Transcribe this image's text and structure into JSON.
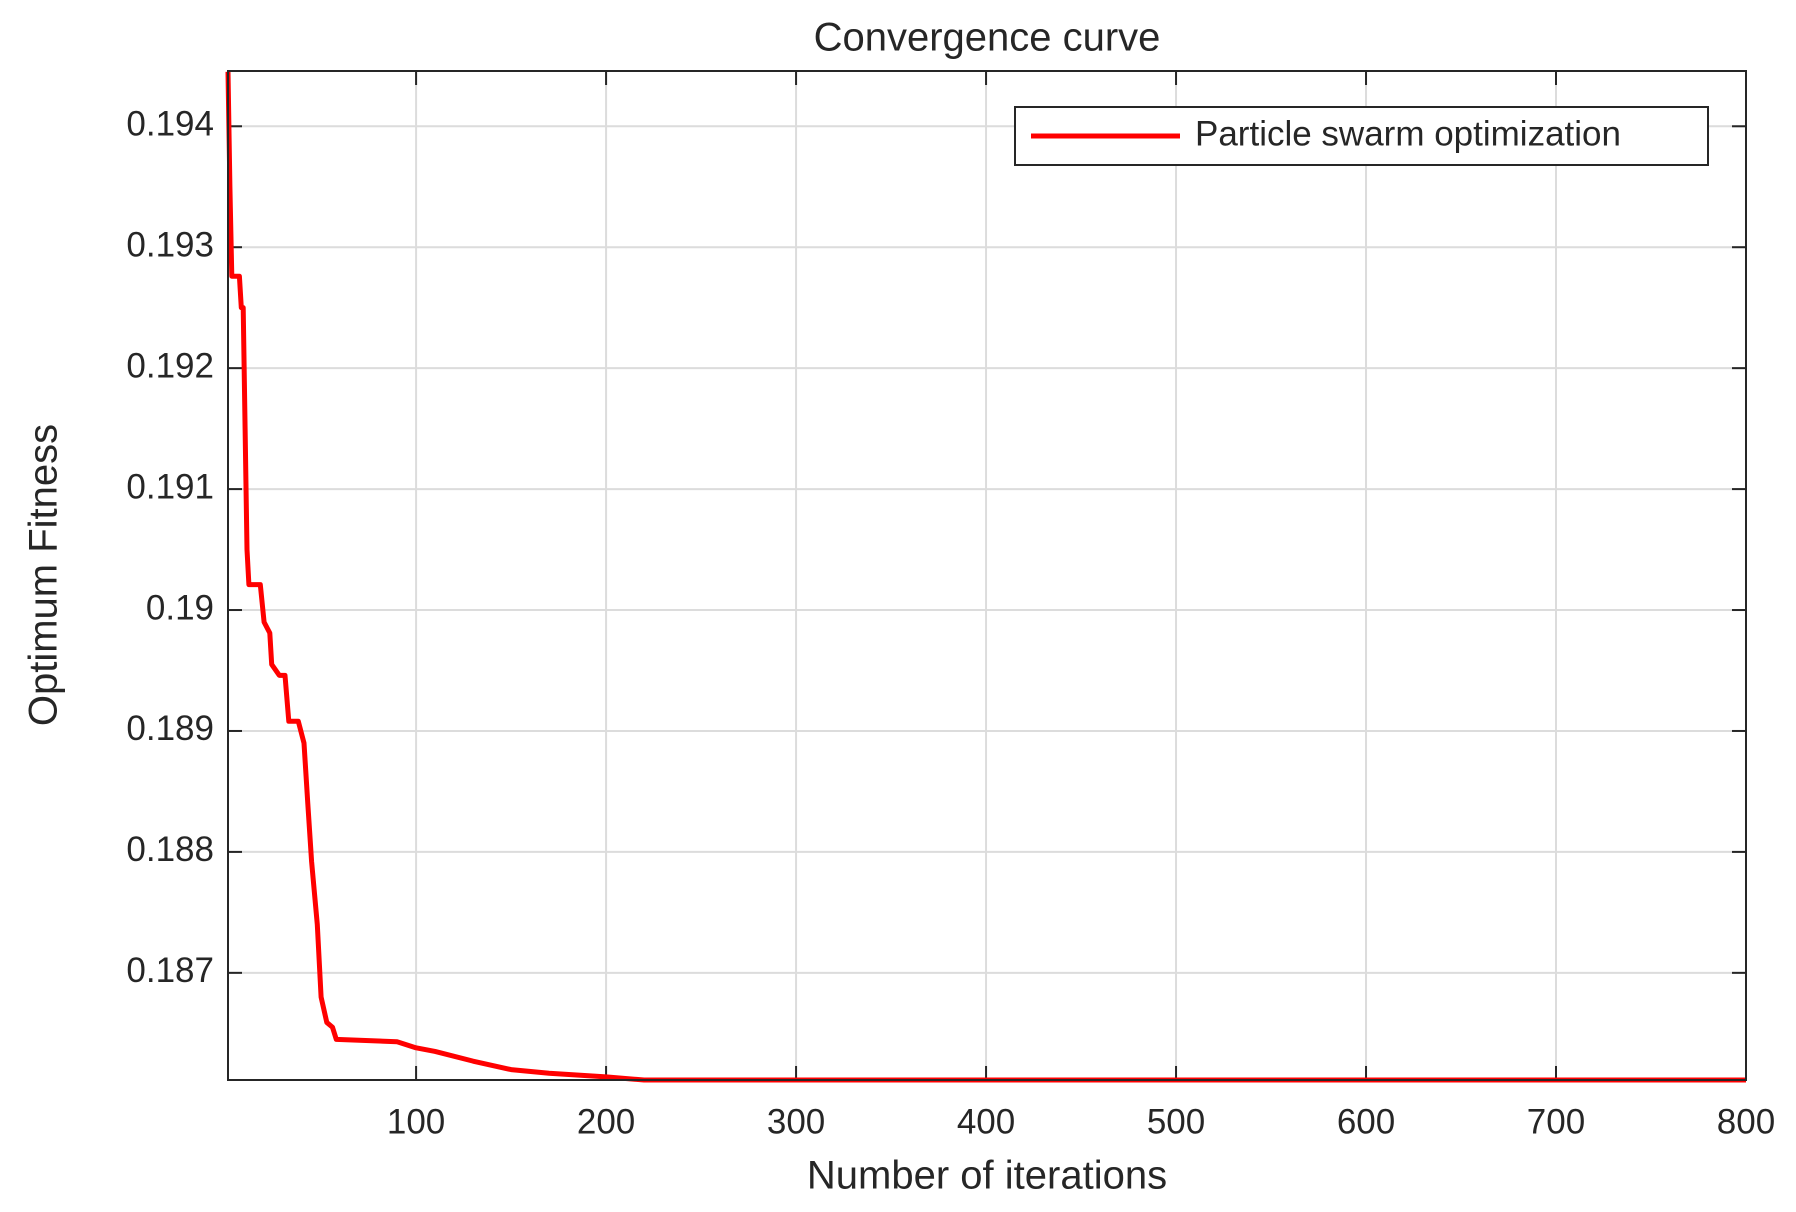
{
  "chart_data": {
    "type": "line",
    "title": "Convergence curve",
    "x_label": "Number of iterations",
    "y_label": "Optimum Fitness",
    "x": [
      1,
      2,
      3,
      7,
      8,
      9,
      10,
      11,
      12,
      18,
      20,
      23,
      24,
      28,
      31,
      33,
      38,
      41,
      43,
      45,
      48,
      50,
      53,
      56,
      58,
      90,
      100,
      110,
      130,
      150,
      170,
      200,
      220,
      800
    ],
    "series": [
      {
        "name": "Particle swarm optimization",
        "color": "#ff0000",
        "values": [
          0.19445,
          0.1935,
          0.19276,
          0.19276,
          0.1925,
          0.1925,
          0.1915,
          0.1905,
          0.19021,
          0.19021,
          0.1899,
          0.18981,
          0.18955,
          0.18946,
          0.18946,
          0.18908,
          0.18908,
          0.1889,
          0.1884,
          0.18792,
          0.1874,
          0.1868,
          0.18659,
          0.18655,
          0.18645,
          0.18643,
          0.18638,
          0.18635,
          0.18627,
          0.1862,
          0.18617,
          0.18614,
          0.186114,
          0.186114
        ]
      }
    ],
    "xlim": [
      1,
      800
    ],
    "ylim": [
      0.186114,
      0.194457
    ],
    "xticks": [
      100,
      200,
      300,
      400,
      500,
      600,
      700,
      800
    ],
    "yticks": [
      0.187,
      0.188,
      0.189,
      0.19,
      0.191,
      0.192,
      0.193,
      0.194
    ],
    "grid": true,
    "legend_position": "upper right"
  }
}
